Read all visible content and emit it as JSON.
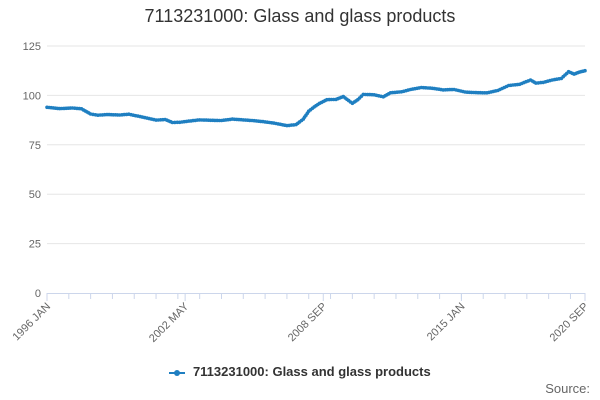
{
  "chart_data": {
    "type": "line",
    "title": "7113231000: Glass and glass products",
    "xlabel": "",
    "ylabel": "",
    "x_tick_labels": [
      "1996 JAN",
      "2002 MAY",
      "2008 SEP",
      "2015 JAN",
      "2020 SEP"
    ],
    "y_ticks": [
      0,
      25,
      50,
      75,
      100,
      125
    ],
    "ylim": [
      0,
      125
    ],
    "xlim": [
      "1996-01",
      "2020-09"
    ],
    "grid": true,
    "legend_position": "bottom-center",
    "series": [
      {
        "name": "7113231000: Glass and glass products",
        "color": "#1f7fc1",
        "points": [
          [
            "1996-01",
            94.0
          ],
          [
            "1996-08",
            93.3
          ],
          [
            "1997-03",
            93.6
          ],
          [
            "1997-08",
            93.2
          ],
          [
            "1998-01",
            90.6
          ],
          [
            "1998-05",
            90.0
          ],
          [
            "1998-10",
            90.3
          ],
          [
            "1999-05",
            90.1
          ],
          [
            "1999-10",
            90.5
          ],
          [
            "2000-03",
            89.5
          ],
          [
            "2000-08",
            88.5
          ],
          [
            "2001-01",
            87.5
          ],
          [
            "2001-06",
            87.8
          ],
          [
            "2001-10",
            86.3
          ],
          [
            "2002-02",
            86.4
          ],
          [
            "2002-07",
            87.0
          ],
          [
            "2003-01",
            87.6
          ],
          [
            "2003-07",
            87.4
          ],
          [
            "2004-01",
            87.3
          ],
          [
            "2004-07",
            88.0
          ],
          [
            "2005-01",
            87.6
          ],
          [
            "2005-07",
            87.2
          ],
          [
            "2006-01",
            86.6
          ],
          [
            "2006-07",
            85.8
          ],
          [
            "2007-01",
            84.7
          ],
          [
            "2007-06",
            85.2
          ],
          [
            "2007-10",
            88.0
          ],
          [
            "2008-01",
            92.0
          ],
          [
            "2008-04",
            94.2
          ],
          [
            "2008-07",
            96.0
          ],
          [
            "2008-11",
            97.8
          ],
          [
            "2009-04",
            98.0
          ],
          [
            "2009-08",
            99.4
          ],
          [
            "2010-01",
            96.0
          ],
          [
            "2010-04",
            97.8
          ],
          [
            "2010-07",
            100.5
          ],
          [
            "2011-01",
            100.3
          ],
          [
            "2011-06",
            99.3
          ],
          [
            "2011-10",
            101.3
          ],
          [
            "2012-04",
            101.8
          ],
          [
            "2012-09",
            103.0
          ],
          [
            "2013-03",
            104.0
          ],
          [
            "2013-09",
            103.6
          ],
          [
            "2014-03",
            102.8
          ],
          [
            "2014-09",
            103.0
          ],
          [
            "2015-03",
            101.7
          ],
          [
            "2015-09",
            101.4
          ],
          [
            "2016-03",
            101.3
          ],
          [
            "2016-09",
            102.5
          ],
          [
            "2017-03",
            105.0
          ],
          [
            "2017-09",
            105.6
          ],
          [
            "2018-03",
            107.8
          ],
          [
            "2018-06",
            106.2
          ],
          [
            "2018-10",
            106.6
          ],
          [
            "2019-03",
            107.8
          ],
          [
            "2019-08",
            108.6
          ],
          [
            "2019-12",
            112.0
          ],
          [
            "2020-03",
            110.8
          ],
          [
            "2020-06",
            111.8
          ],
          [
            "2020-09",
            112.5
          ]
        ]
      }
    ],
    "source_label": "Source:"
  }
}
